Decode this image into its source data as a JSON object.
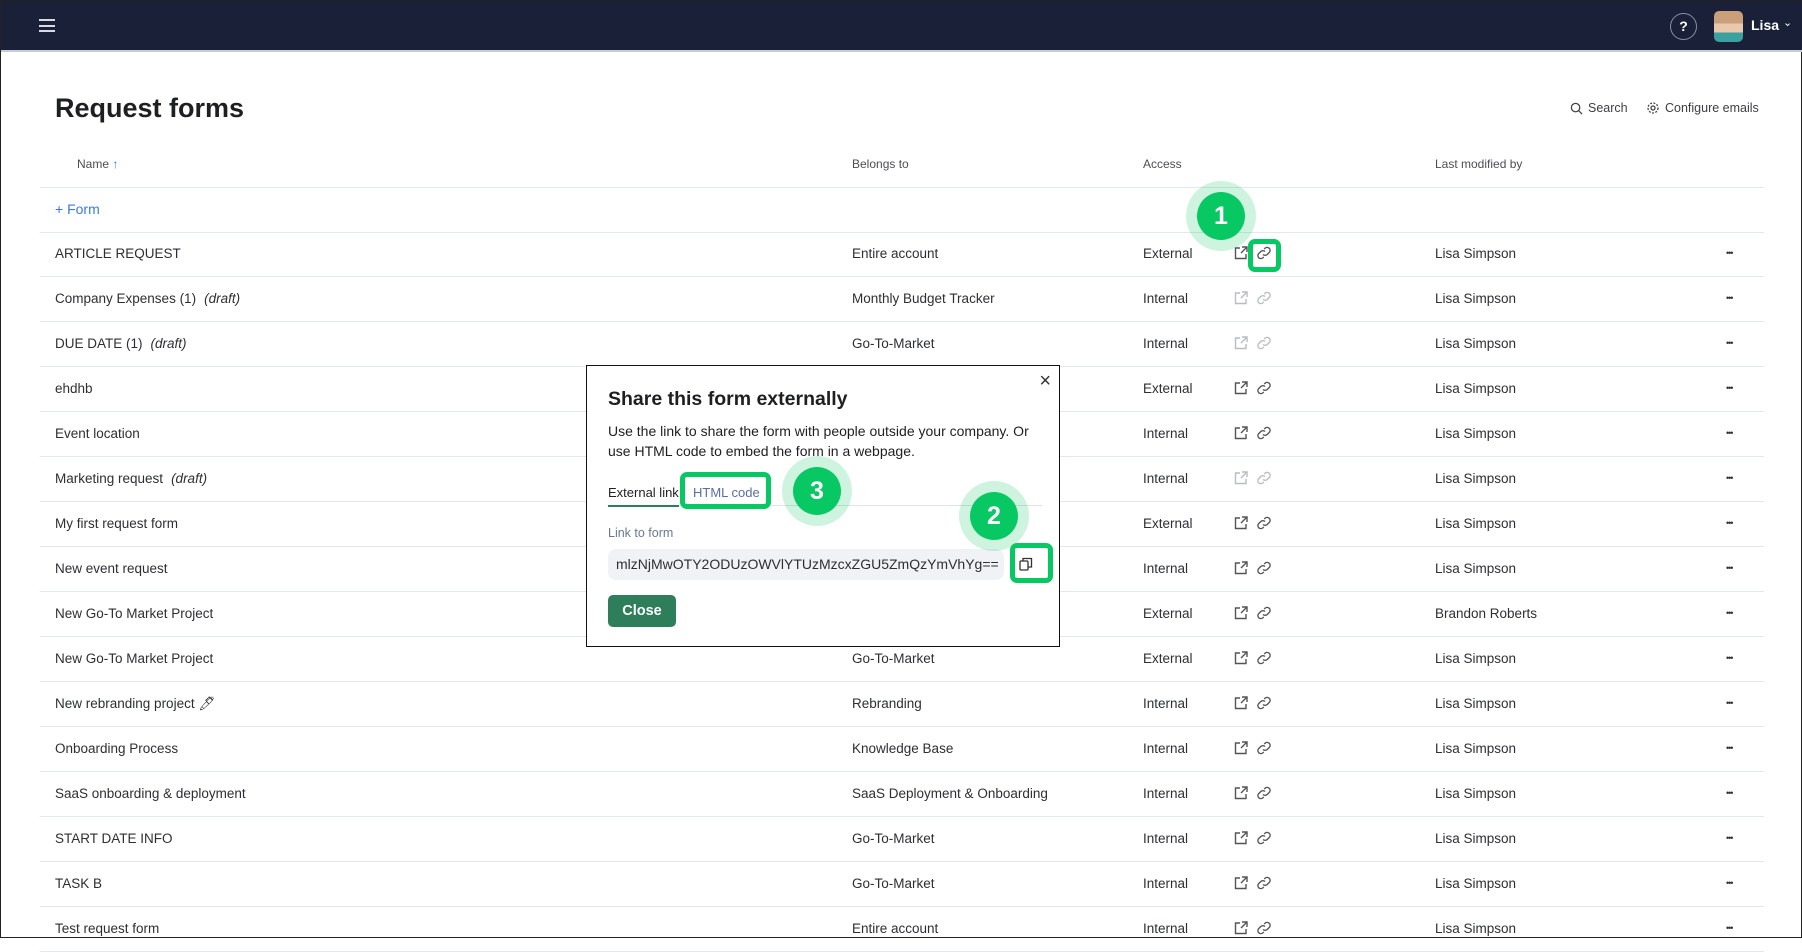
{
  "topbar": {
    "help": "?",
    "user": "Lisa",
    "menu_icon": "hamburger-icon"
  },
  "page": {
    "title": "Request forms",
    "search": "Search",
    "configure": "Configure emails"
  },
  "columns": {
    "name": "Name",
    "sort": "↑",
    "belongs": "Belongs to",
    "access": "Access",
    "modified": "Last modified by"
  },
  "add_form": "+ Form",
  "draft_label": "(draft)",
  "rows": [
    {
      "name": "ARTICLE REQUEST",
      "draft": false,
      "belongs": "Entire account",
      "access": "External",
      "enabled": true,
      "modified": "Lisa Simpson"
    },
    {
      "name": "Company Expenses (1)",
      "draft": true,
      "belongs": "Monthly Budget Tracker",
      "access": "Internal",
      "enabled": false,
      "modified": "Lisa Simpson"
    },
    {
      "name": "DUE DATE (1)",
      "draft": true,
      "belongs": "Go-To-Market",
      "access": "Internal",
      "enabled": false,
      "modified": "Lisa Simpson"
    },
    {
      "name": "ehdhb",
      "draft": false,
      "belongs": "",
      "access": "External",
      "enabled": true,
      "modified": "Lisa Simpson"
    },
    {
      "name": "Event location",
      "draft": false,
      "belongs": "",
      "access": "Internal",
      "enabled": true,
      "modified": "Lisa Simpson"
    },
    {
      "name": "Marketing request",
      "draft": true,
      "belongs": "",
      "access": "Internal",
      "enabled": false,
      "modified": "Lisa Simpson"
    },
    {
      "name": "My first request form",
      "draft": false,
      "belongs": "",
      "access": "External",
      "enabled": true,
      "modified": "Lisa Simpson"
    },
    {
      "name": "New event request",
      "draft": false,
      "belongs": "",
      "access": "Internal",
      "enabled": true,
      "modified": "Lisa Simpson"
    },
    {
      "name": "New Go-To Market Project",
      "draft": false,
      "belongs": "",
      "access": "External",
      "enabled": true,
      "modified": "Brandon Roberts"
    },
    {
      "name": "New Go-To Market Project",
      "draft": false,
      "belongs": "Go-To-Market",
      "access": "External",
      "enabled": true,
      "modified": "Lisa Simpson"
    },
    {
      "name": "New rebranding project 🖊",
      "draft": false,
      "belongs": "Rebranding",
      "access": "Internal",
      "enabled": true,
      "modified": "Lisa Simpson"
    },
    {
      "name": "Onboarding Process",
      "draft": false,
      "belongs": "Knowledge Base",
      "access": "Internal",
      "enabled": true,
      "modified": "Lisa Simpson"
    },
    {
      "name": "SaaS onboarding & deployment",
      "draft": false,
      "belongs": "SaaS Deployment & Onboarding",
      "access": "Internal",
      "enabled": true,
      "modified": "Lisa Simpson"
    },
    {
      "name": "START DATE INFO",
      "draft": false,
      "belongs": "Go-To-Market",
      "access": "Internal",
      "enabled": true,
      "modified": "Lisa Simpson"
    },
    {
      "name": "TASK B",
      "draft": false,
      "belongs": "Go-To-Market",
      "access": "Internal",
      "enabled": true,
      "modified": "Lisa Simpson"
    },
    {
      "name": "Test request form",
      "draft": false,
      "belongs": "Entire account",
      "access": "Internal",
      "enabled": true,
      "modified": "Lisa Simpson"
    }
  ],
  "modal": {
    "title": "Share this form externally",
    "description": "Use the link to share the form with people outside your company. Or use HTML code to embed the form in a webpage.",
    "tabs": [
      "External link",
      "HTML code"
    ],
    "link_label": "Link to form",
    "link_value": "mlzNjMwOTY2ODUzOWVlYTUzMzcxZGU5ZmQzYmVhYg==",
    "close": "Close",
    "close_icon": "×"
  },
  "annotations": [
    "1",
    "2",
    "3"
  ],
  "colors": {
    "topbar": "#1b2039",
    "accent": "#2e7d5b",
    "annotation": "#08c863",
    "link": "#3b7ae0"
  }
}
